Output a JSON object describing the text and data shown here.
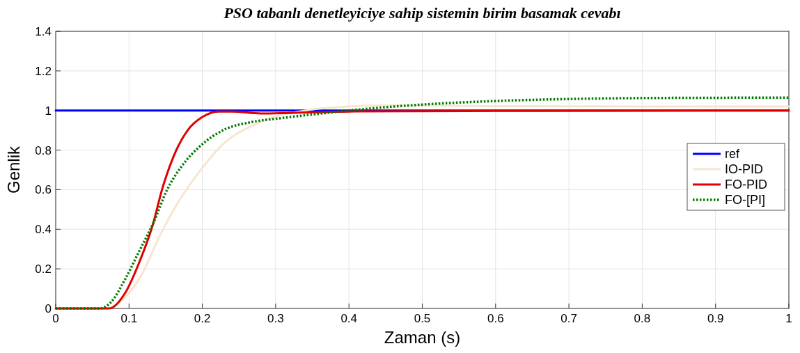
{
  "chart_data": {
    "type": "line",
    "title": "PSO tabanlı denetleyiciye sahip sistemin birim basamak cevabı",
    "xlabel": "Zaman (s)",
    "ylabel": "Genlik",
    "xlim": [
      0,
      1
    ],
    "xticks": [
      0,
      0.1,
      0.2,
      0.3,
      0.4,
      0.5,
      0.6,
      0.7,
      0.8,
      0.9,
      1
    ],
    "ylim": [
      0,
      1.4
    ],
    "yticks": [
      0,
      0.2,
      0.4,
      0.6,
      0.8,
      1,
      1.2,
      1.4
    ],
    "grid": true,
    "legend": "right",
    "series": [
      {
        "name": "ref",
        "color": "#0000ff",
        "line_style": "solid",
        "x": [
          0,
          1
        ],
        "values": [
          1,
          1
        ]
      },
      {
        "name": "IO-PID",
        "color": "#f5e6d0",
        "line_style": "solid",
        "x": [
          0,
          0.07,
          0.09,
          0.114,
          0.145,
          0.171,
          0.2,
          0.228,
          0.269,
          0.301,
          0.35,
          0.4,
          0.45,
          0.5,
          0.6,
          0.8,
          1
        ],
        "values": [
          0,
          0,
          0.04,
          0.15,
          0.39,
          0.56,
          0.71,
          0.83,
          0.925,
          0.97,
          1.005,
          1.02,
          1.025,
          1.025,
          1.022,
          1.02,
          1.02
        ]
      },
      {
        "name": "FO-PID",
        "color": "#e00000",
        "line_style": "solid",
        "x": [
          0,
          0.073,
          0.095,
          0.114,
          0.133,
          0.145,
          0.161,
          0.18,
          0.2,
          0.222,
          0.24,
          0.28,
          0.32,
          0.4,
          0.6,
          1
        ],
        "values": [
          0,
          0,
          0.08,
          0.233,
          0.43,
          0.6,
          0.77,
          0.9,
          0.967,
          0.995,
          0.995,
          0.985,
          0.988,
          0.995,
          0.998,
          1
        ]
      },
      {
        "name": "FO-[PI]",
        "color": "#007a00",
        "line_style": "dotted",
        "x": [
          0,
          0.06,
          0.075,
          0.095,
          0.114,
          0.133,
          0.152,
          0.171,
          0.2,
          0.228,
          0.269,
          0.304,
          0.35,
          0.4,
          0.5,
          0.6,
          0.7,
          0.8,
          1
        ],
        "values": [
          0,
          0,
          0.03,
          0.15,
          0.29,
          0.43,
          0.6,
          0.714,
          0.83,
          0.9,
          0.943,
          0.96,
          0.98,
          1,
          1.03,
          1.048,
          1.058,
          1.063,
          1.065
        ]
      }
    ]
  }
}
